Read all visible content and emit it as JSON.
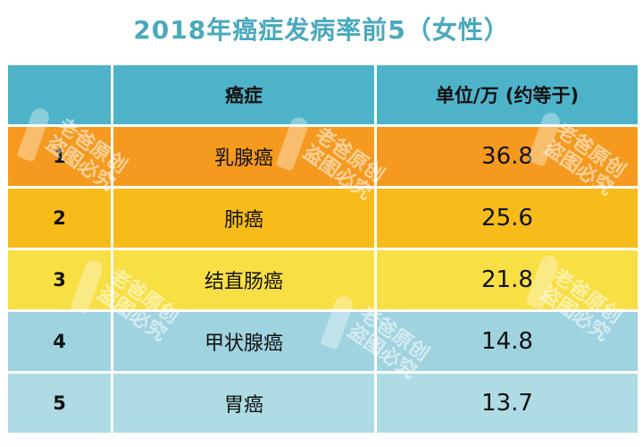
{
  "title": "2018年癌症发病率前5（女性）",
  "table": {
    "headers": [
      "",
      "癌症",
      "单位/万 (约等于)"
    ],
    "rows": [
      {
        "rank": "1",
        "cancer": "乳腺癌",
        "value": "36.8",
        "color": "#f59a1f"
      },
      {
        "rank": "2",
        "cancer": "肺癌",
        "value": "25.6",
        "color": "#f7bb1a"
      },
      {
        "rank": "3",
        "cancer": "结直肠癌",
        "value": "21.8",
        "color": "#f8df43"
      },
      {
        "rank": "4",
        "cancer": "甲状腺癌",
        "value": "14.8",
        "color": "#9fd3df"
      },
      {
        "rank": "5",
        "cancer": "胃癌",
        "value": "13.7",
        "color": "#aedbe4"
      }
    ]
  },
  "watermark": {
    "line1": "老爸原创",
    "line2": "盗图必究"
  }
}
